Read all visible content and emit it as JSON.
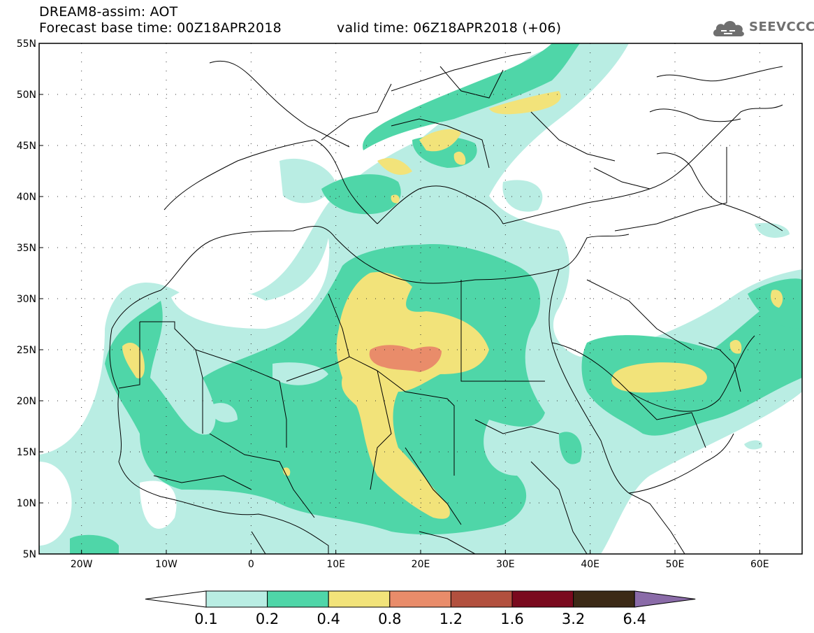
{
  "title": {
    "line1": "DREAM8-assim: AOT",
    "line2": "Forecast base time: 00Z18APR2018",
    "line3": "valid time: 06Z18APR2018 (+06)"
  },
  "logo": {
    "text": "SEEVCCC",
    "icon": "cloud-logo-icon"
  },
  "map": {
    "lon_range": [
      -25,
      65
    ],
    "lat_range": [
      5,
      55
    ],
    "lat_labels": [
      "55N",
      "50N",
      "45N",
      "40N",
      "35N",
      "30N",
      "25N",
      "20N",
      "15N",
      "10N",
      "5N"
    ],
    "lon_labels": [
      "20W",
      "10W",
      "0",
      "10E",
      "20E",
      "30E",
      "40E",
      "50E",
      "60E"
    ],
    "grid": "dotted",
    "colors": {
      "c01": "#b9ede3",
      "c02": "#4fd6a8",
      "c04": "#f2e37a",
      "c08": "#e98c6a",
      "c12": "#b2503e",
      "c16": "#7a0a1e",
      "c32": "#3c2a16",
      "c64": "#8a6ba8",
      "borders": "#000000"
    }
  },
  "colorbar": {
    "labels": [
      "0.1",
      "0.2",
      "0.4",
      "0.8",
      "1.2",
      "1.6",
      "3.2",
      "6.4"
    ],
    "colors": [
      "#ffffff",
      "#b9ede3",
      "#4fd6a8",
      "#f2e37a",
      "#e98c6a",
      "#b2503e",
      "#7a0a1e",
      "#3c2a16",
      "#8a6ba8"
    ]
  }
}
